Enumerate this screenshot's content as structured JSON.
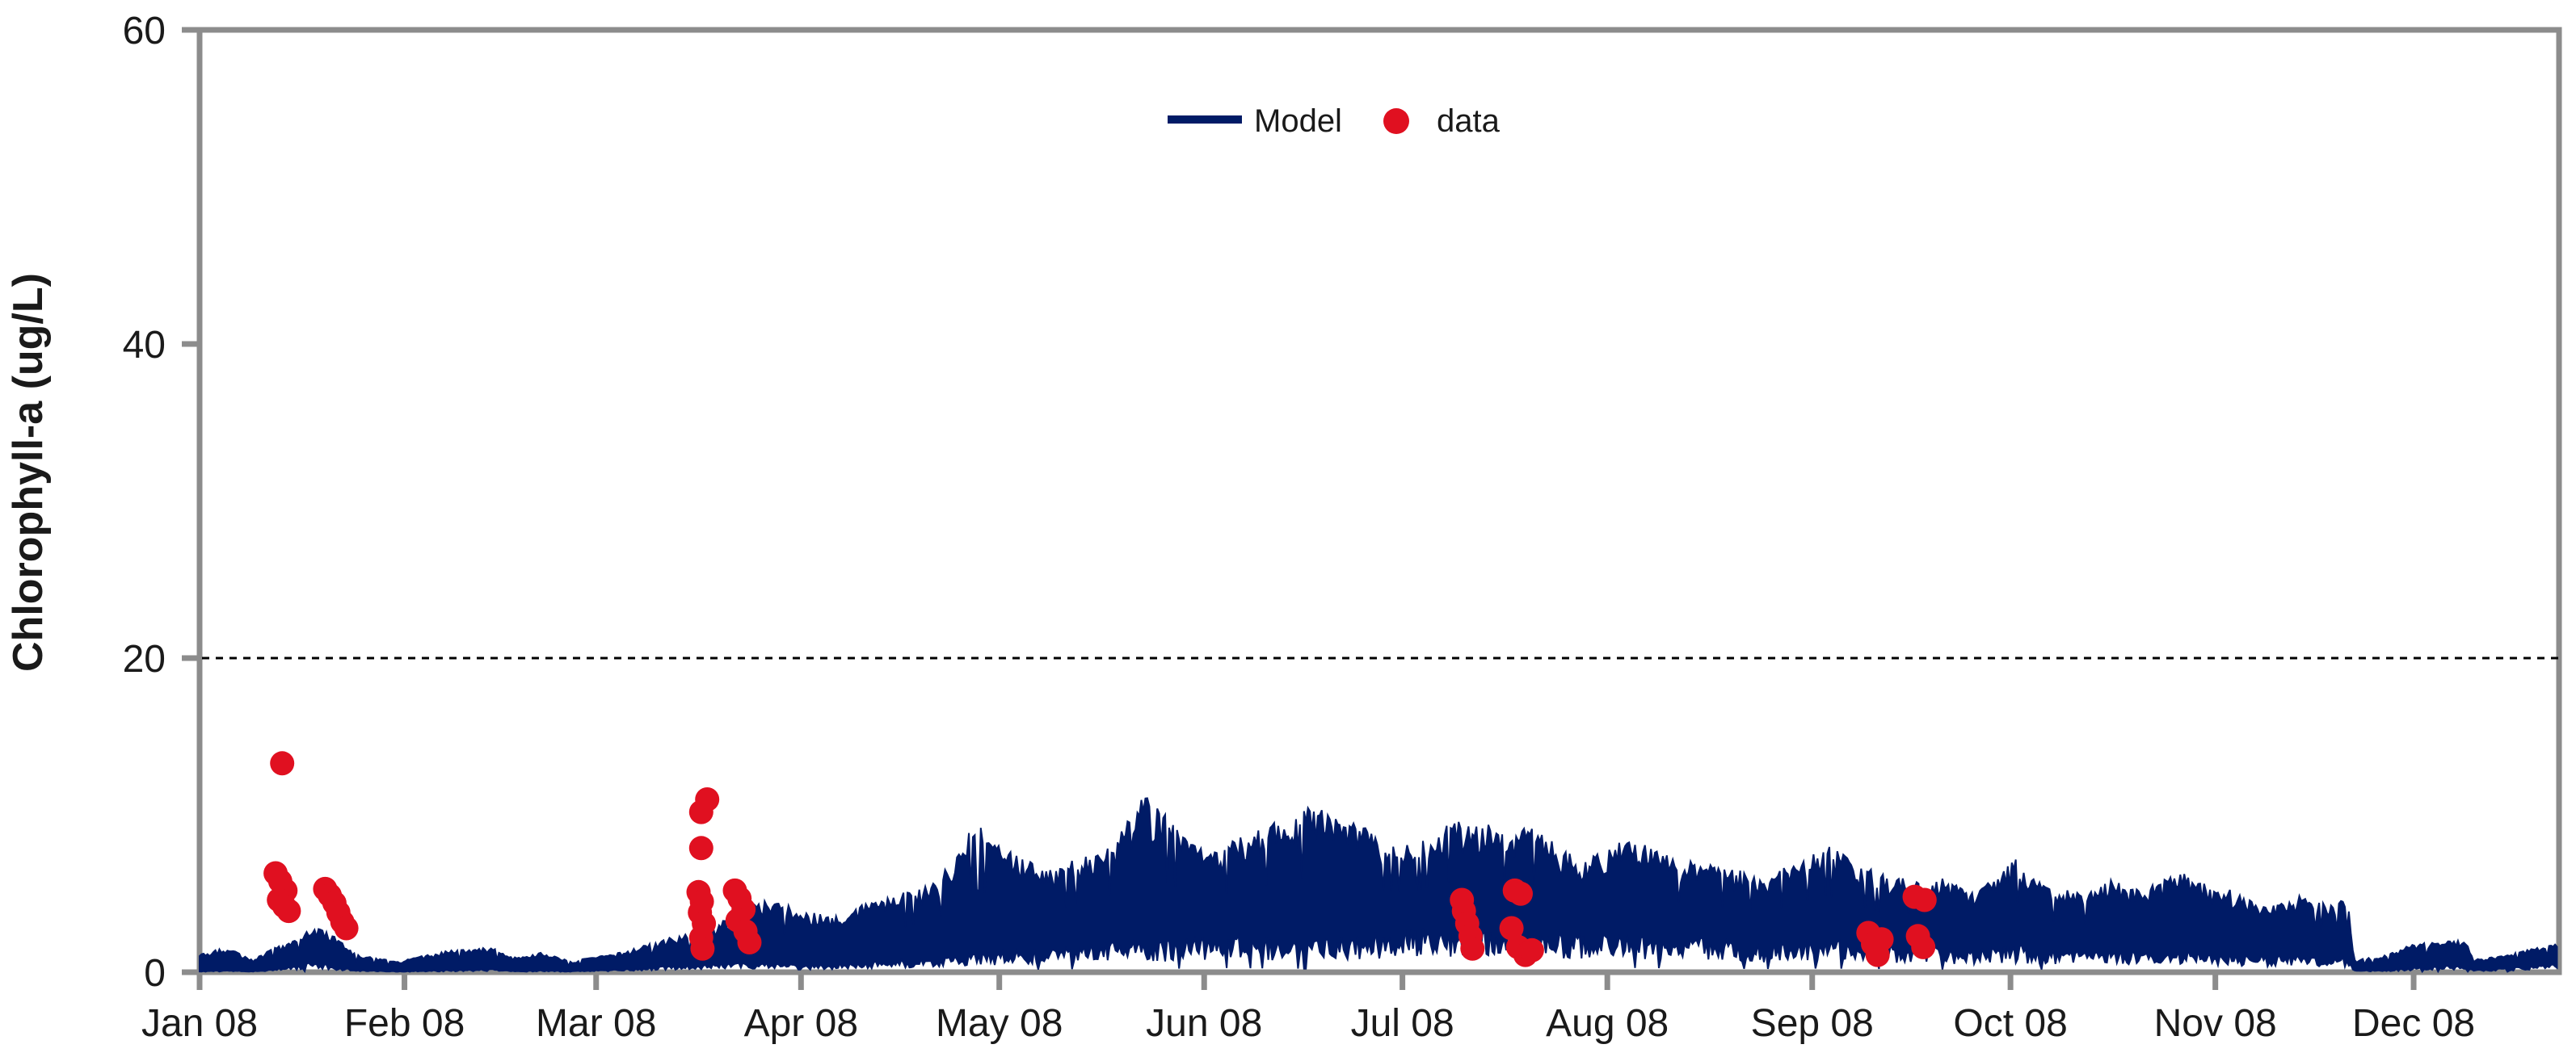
{
  "chart_data": {
    "type": "line",
    "title": "",
    "ylabel": "Chlorophyll-a (ug/L)",
    "xlabel": "",
    "ylim": [
      0,
      60
    ],
    "yticks": [
      0,
      20,
      40,
      60
    ],
    "ytick_labels": [
      "0",
      "20",
      "40",
      "60"
    ],
    "xtick_labels": [
      "Jan 08",
      "Feb 08",
      "Mar 08",
      "Apr 08",
      "May 08",
      "Jun 08",
      "Jul 08",
      "Aug 08",
      "Sep 08",
      "Oct 08",
      "Nov 08",
      "Dec 08"
    ],
    "month_start_days": [
      1,
      32,
      61,
      92,
      122,
      153,
      183,
      214,
      245,
      275,
      306,
      336
    ],
    "x_domain_days": [
      1,
      358
    ],
    "threshold_value": 20,
    "grid": "off",
    "legend_position": "top-center",
    "colors": {
      "model": "#001B66",
      "data": "#E01020",
      "axis": "#8C8C8C",
      "text": "#1A1A1A",
      "threshold": "#000000",
      "background": "#FFFFFF"
    },
    "series": [
      {
        "name": "Model",
        "type": "noisy-band-line",
        "color": "#001B66",
        "envelope_day_lo_hi": [
          [
            1,
            0.05,
            1.2
          ],
          [
            5,
            0.1,
            1.6
          ],
          [
            9,
            0.05,
            0.8
          ],
          [
            12,
            0.15,
            1.5
          ],
          [
            15,
            0.3,
            2.0
          ],
          [
            18,
            0.5,
            3.0
          ],
          [
            21,
            0.3,
            2.4
          ],
          [
            25,
            0.1,
            1.1
          ],
          [
            31,
            0.05,
            0.7
          ],
          [
            38,
            0.1,
            1.35
          ],
          [
            45,
            0.15,
            1.6
          ],
          [
            49,
            0.05,
            0.9
          ],
          [
            53,
            0.1,
            1.3
          ],
          [
            57,
            0.05,
            0.7
          ],
          [
            61,
            0.1,
            1.0
          ],
          [
            66,
            0.15,
            1.4
          ],
          [
            72,
            0.3,
            2.2
          ],
          [
            78,
            0.4,
            2.7
          ],
          [
            84,
            0.5,
            4.3
          ],
          [
            88,
            0.45,
            4.7
          ],
          [
            92,
            0.35,
            3.9
          ],
          [
            97,
            0.4,
            3.6
          ],
          [
            102,
            0.5,
            4.4
          ],
          [
            107,
            0.6,
            5.0
          ],
          [
            112,
            0.7,
            5.7
          ],
          [
            116,
            0.8,
            8.0
          ],
          [
            118,
            1.0,
            9.7
          ],
          [
            121,
            1.0,
            8.6
          ],
          [
            125,
            1.1,
            7.3
          ],
          [
            130,
            1.2,
            6.6
          ],
          [
            135,
            1.4,
            7.5
          ],
          [
            140,
            1.5,
            8.7
          ],
          [
            144,
            1.6,
            11.3
          ],
          [
            147,
            1.5,
            10.1
          ],
          [
            151,
            1.6,
            8.2
          ],
          [
            155,
            1.8,
            7.9
          ],
          [
            160,
            1.7,
            9.0
          ],
          [
            165,
            1.6,
            9.9
          ],
          [
            169,
            1.5,
            10.6
          ],
          [
            173,
            1.7,
            10.0
          ],
          [
            177,
            1.8,
            9.3
          ],
          [
            181,
            2.0,
            8.3
          ],
          [
            185,
            2.2,
            8.1
          ],
          [
            190,
            2.0,
            9.5
          ],
          [
            194,
            2.1,
            9.7
          ],
          [
            198,
            2.2,
            9.2
          ],
          [
            202,
            2.0,
            9.4
          ],
          [
            207,
            1.9,
            8.0
          ],
          [
            211,
            1.8,
            7.1
          ],
          [
            214,
            1.9,
            8.2
          ],
          [
            219,
            1.8,
            8.4
          ],
          [
            224,
            1.7,
            7.3
          ],
          [
            229,
            1.6,
            7.0
          ],
          [
            234,
            1.5,
            6.5
          ],
          [
            238,
            1.4,
            5.9
          ],
          [
            242,
            1.5,
            7.0
          ],
          [
            247,
            1.6,
            8.2
          ],
          [
            251,
            1.5,
            7.2
          ],
          [
            255,
            1.4,
            6.3
          ],
          [
            260,
            1.3,
            6.1
          ],
          [
            265,
            1.2,
            6.0
          ],
          [
            269,
            1.1,
            5.1
          ],
          [
            273,
            1.2,
            6.0
          ],
          [
            276,
            1.3,
            7.4
          ],
          [
            281,
            1.1,
            5.4
          ],
          [
            286,
            1.0,
            5.1
          ],
          [
            290,
            1.1,
            5.9
          ],
          [
            295,
            1.0,
            5.2
          ],
          [
            300,
            1.1,
            6.5
          ],
          [
            305,
            1.0,
            5.6
          ],
          [
            309,
            0.9,
            5.2
          ],
          [
            314,
            0.8,
            4.2
          ],
          [
            319,
            0.9,
            5.0
          ],
          [
            323,
            0.8,
            4.4
          ],
          [
            326,
            0.7,
            4.9
          ],
          [
            327,
            0.1,
            0.8
          ],
          [
            331,
            0.1,
            1.0
          ],
          [
            335,
            0.2,
            1.7
          ],
          [
            340,
            0.3,
            2.0
          ],
          [
            344,
            0.3,
            2.1
          ],
          [
            345,
            0.1,
            0.8
          ],
          [
            350,
            0.2,
            1.1
          ],
          [
            354,
            0.3,
            1.5
          ],
          [
            358,
            0.4,
            2.0
          ]
        ]
      },
      {
        "name": "data",
        "type": "scatter",
        "color": "#E01020",
        "marker_radius_px": 15,
        "points_day_value": [
          [
            13.5,
            13.3
          ],
          [
            12.5,
            6.3
          ],
          [
            13.2,
            5.8
          ],
          [
            14.0,
            5.2
          ],
          [
            13.0,
            4.6
          ],
          [
            13.8,
            4.2
          ],
          [
            14.5,
            3.9
          ],
          [
            20.0,
            5.3
          ],
          [
            20.7,
            4.9
          ],
          [
            21.4,
            4.4
          ],
          [
            22.0,
            3.8
          ],
          [
            22.6,
            3.2
          ],
          [
            23.2,
            2.8
          ],
          [
            77.8,
            11.0
          ],
          [
            76.9,
            10.2
          ],
          [
            76.9,
            7.9
          ],
          [
            76.5,
            5.1
          ],
          [
            77.0,
            4.5
          ],
          [
            76.7,
            3.8
          ],
          [
            77.3,
            3.1
          ],
          [
            76.9,
            2.2
          ],
          [
            77.1,
            1.5
          ],
          [
            82.0,
            5.2
          ],
          [
            82.7,
            4.7
          ],
          [
            83.3,
            4.0
          ],
          [
            82.4,
            3.3
          ],
          [
            83.6,
            2.6
          ],
          [
            84.2,
            1.9
          ],
          [
            192.0,
            4.6
          ],
          [
            192.3,
            3.9
          ],
          [
            192.8,
            3.1
          ],
          [
            193.3,
            2.3
          ],
          [
            193.6,
            1.5
          ],
          [
            200.0,
            5.2
          ],
          [
            200.9,
            5.0
          ],
          [
            199.5,
            2.8
          ],
          [
            200.5,
            1.6
          ],
          [
            201.6,
            1.1
          ],
          [
            202.6,
            1.4
          ],
          [
            253.5,
            2.5
          ],
          [
            254.2,
            1.8
          ],
          [
            254.9,
            1.1
          ],
          [
            255.5,
            2.1
          ],
          [
            260.5,
            4.8
          ],
          [
            262.0,
            4.6
          ],
          [
            261.0,
            2.3
          ],
          [
            261.8,
            1.6
          ]
        ]
      }
    ]
  },
  "legend": {
    "model_label": "Model",
    "data_label": "data"
  },
  "axes": {
    "y_title": "Chlorophyll-a (ug/L)"
  }
}
